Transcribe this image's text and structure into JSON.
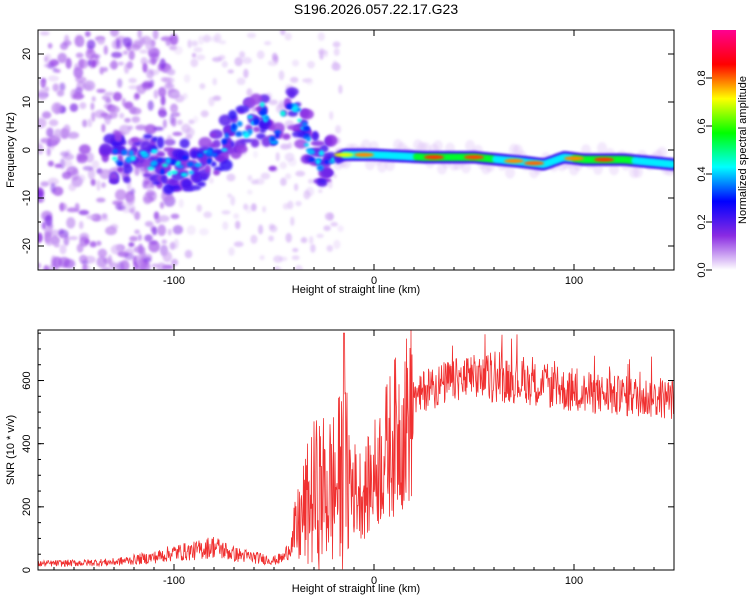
{
  "title": "S196.2026.057.22.17.G23",
  "chart_data": [
    {
      "type": "heatmap",
      "title": "S196.2026.057.22.17.G23",
      "xlabel": "Height of straight line (km)",
      "ylabel": "Frequency (Hz)",
      "xlim": [
        -168,
        150
      ],
      "ylim": [
        -25,
        25
      ],
      "x_ticks": [
        -100,
        0,
        100
      ],
      "y_ticks": [
        -20,
        -10,
        0,
        10,
        20
      ],
      "colorbar": {
        "label": "Normalized spectral amplitude",
        "range": [
          0,
          1
        ],
        "ticks": [
          "0.0",
          "0.2",
          "0.4",
          "0.6",
          "0.8"
        ],
        "colors": [
          "#ffffff",
          "#8a2be2",
          "#0000ff",
          "#00ffff",
          "#00ff00",
          "#ffff00",
          "#ff0000",
          "#ff0090"
        ]
      },
      "ridge": {
        "x": [
          -135,
          -120,
          -110,
          -100,
          -90,
          -80,
          -70,
          -60,
          -55,
          -50,
          -45,
          -40,
          -35,
          -30,
          -25,
          -15,
          0,
          25,
          50,
          75,
          85,
          95,
          105,
          125,
          150
        ],
        "y": [
          -2,
          -1,
          -2,
          -4,
          -3,
          -1,
          3,
          6,
          8,
          0,
          7,
          9,
          4,
          -1,
          -3,
          -1,
          -1,
          -1.5,
          -1.5,
          -2.5,
          -3,
          -1.5,
          -2,
          -2,
          -3
        ]
      }
    },
    {
      "type": "line",
      "xlabel": "Height of straight line (km)",
      "ylabel": "SNR (10 * v/v)",
      "xlim": [
        -168,
        150
      ],
      "ylim": [
        0,
        760
      ],
      "x_ticks": [
        -100,
        0,
        100
      ],
      "y_ticks": [
        0,
        200,
        400,
        600
      ],
      "color": "#f03030",
      "series": [
        {
          "name": "SNR",
          "x": [
            -168,
            -150,
            -130,
            -110,
            -100,
            -90,
            -80,
            -70,
            -60,
            -50,
            -45,
            -40,
            -35,
            -30,
            -25,
            -20,
            -15,
            -10,
            -5,
            0,
            5,
            10,
            15,
            20,
            25,
            30,
            40,
            50,
            60,
            70,
            80,
            90,
            100,
            110,
            120,
            130,
            140,
            150
          ],
          "values": [
            20,
            22,
            25,
            40,
            55,
            60,
            75,
            50,
            40,
            30,
            40,
            100,
            180,
            240,
            250,
            260,
            300,
            260,
            240,
            300,
            360,
            420,
            460,
            520,
            570,
            580,
            600,
            610,
            600,
            600,
            590,
            580,
            560,
            560,
            550,
            550,
            545,
            540
          ],
          "peaks": {
            "x": [
              -15
            ],
            "values": [
              750
            ]
          }
        }
      ]
    }
  ]
}
